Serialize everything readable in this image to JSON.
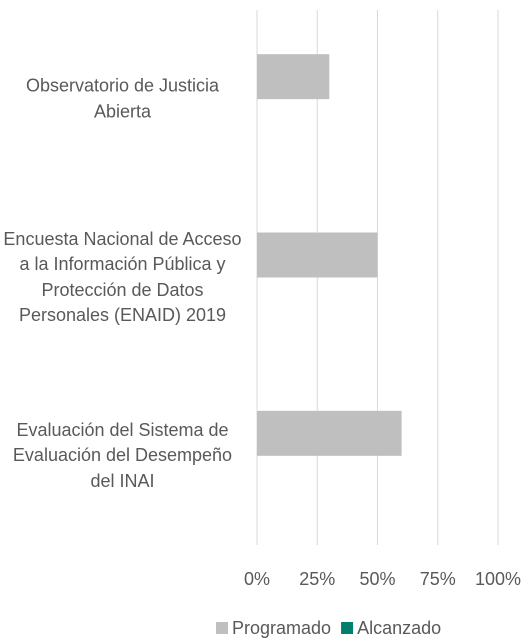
{
  "chart_data": {
    "type": "hbar",
    "categories": [
      "Observatorio de Justicia Abierta",
      "Encuesta Nacional de Acceso a la Información Pública y Protección de Datos Personales (ENAID) 2019",
      "Evaluación del Sistema de Evaluación del Desempeño del INAI"
    ],
    "series": [
      {
        "name": "Programado",
        "color": "#bfbfbf",
        "values": [
          30,
          50,
          60
        ]
      },
      {
        "name": "Alcanzado",
        "color": "#00806b",
        "values": [
          0,
          0,
          0
        ]
      }
    ],
    "xlim": [
      0,
      100
    ],
    "xticks": [
      {
        "value": 0,
        "label": "0%"
      },
      {
        "value": 25,
        "label": "25%"
      },
      {
        "value": 50,
        "label": "50%"
      },
      {
        "value": 75,
        "label": "75%"
      },
      {
        "value": 100,
        "label": "100%"
      }
    ],
    "grid": true,
    "legend": "bottom"
  }
}
